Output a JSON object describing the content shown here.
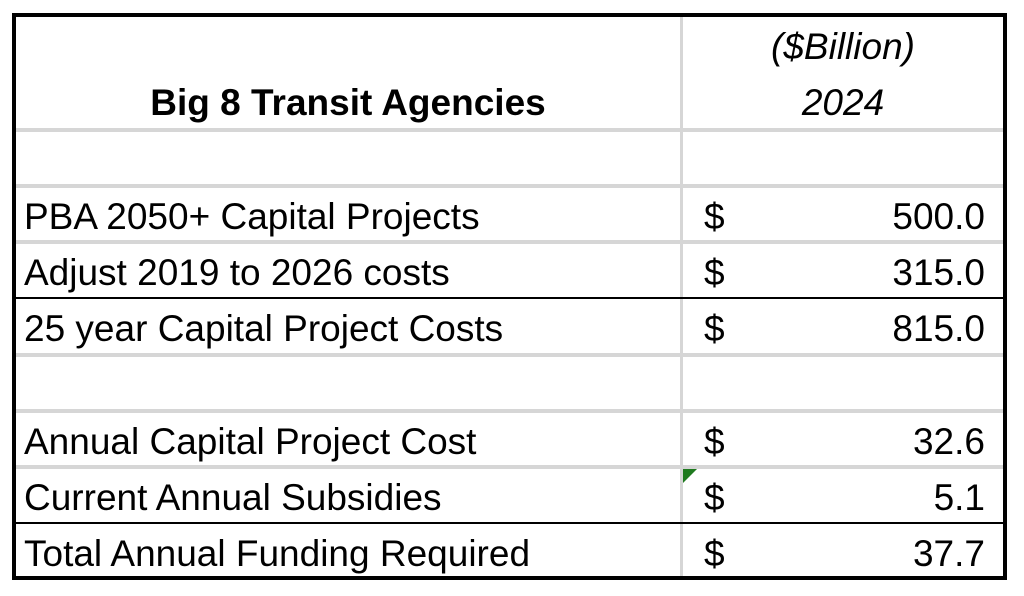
{
  "header": {
    "title": "Big 8 Transit Agencies",
    "unit_label": "($Billion)",
    "year_label": "2024"
  },
  "rows": [
    {
      "label": "PBA 2050+ Capital Projects",
      "currency": "$",
      "value": "500.0"
    },
    {
      "label": "Adjust 2019 to 2026 costs",
      "currency": "$",
      "value": "315.0"
    },
    {
      "label": "25 year Capital Project Costs",
      "currency": "$",
      "value": "815.0"
    },
    {
      "label": "Annual Capital Project Cost",
      "currency": "$",
      "value": "32.6"
    },
    {
      "label": "Current Annual Subsidies",
      "currency": "$",
      "value": "5.1"
    },
    {
      "label": "Total Annual Funding Required",
      "currency": "$",
      "value": "37.7"
    }
  ],
  "colors": {
    "border": "#000000",
    "gridline": "#d6d6d6",
    "comment_indicator": "#1f7a1f"
  }
}
